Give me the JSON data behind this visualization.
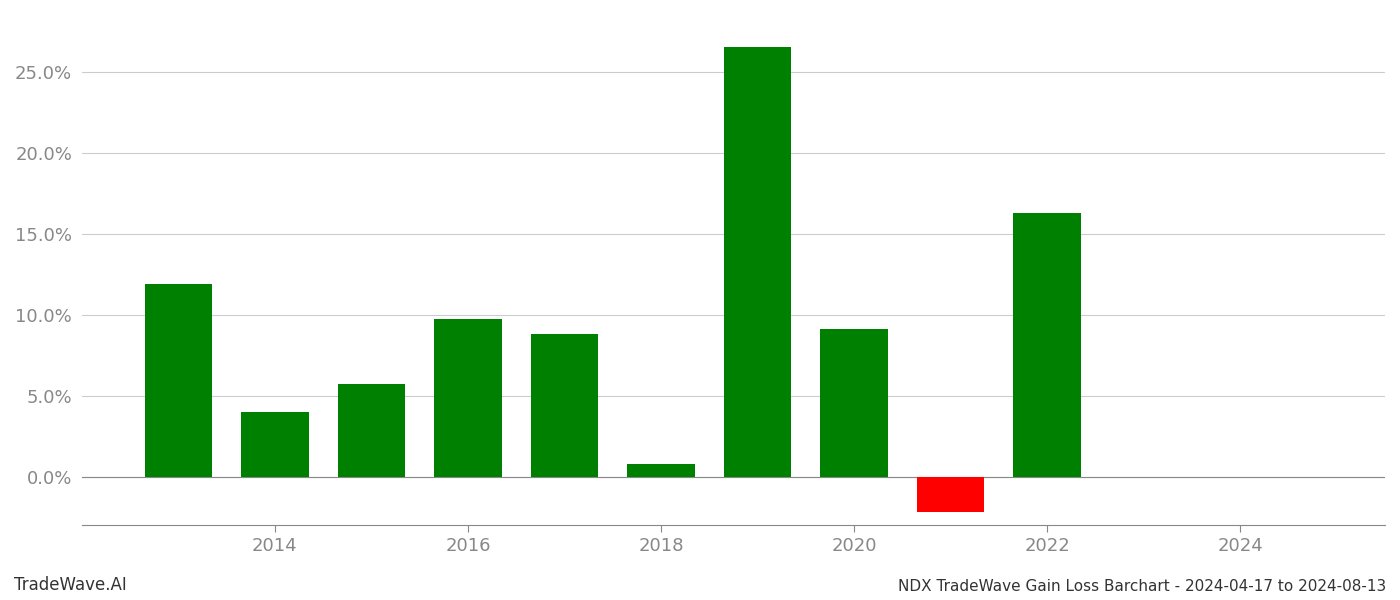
{
  "bar_years": [
    2013,
    2014,
    2015,
    2016,
    2017,
    2018,
    2019,
    2020,
    2021,
    2022,
    2023
  ],
  "bar_values": [
    0.119,
    0.04,
    0.057,
    0.097,
    0.088,
    0.008,
    0.265,
    0.091,
    -0.022,
    0.163,
    0.0
  ],
  "bar_colors": [
    "#008000",
    "#008000",
    "#008000",
    "#008000",
    "#008000",
    "#008000",
    "#008000",
    "#008000",
    "#ff0000",
    "#008000",
    "#008000"
  ],
  "xlim_min": 2012.0,
  "xlim_max": 2025.5,
  "ylim_min": -0.03,
  "ylim_max": 0.285,
  "yticks": [
    0.0,
    0.05,
    0.1,
    0.15,
    0.2,
    0.25
  ],
  "xticks": [
    2014,
    2016,
    2018,
    2020,
    2022,
    2024
  ],
  "bar_width": 0.7,
  "title": "NDX TradeWave Gain Loss Barchart - 2024-04-17 to 2024-08-13",
  "footnote_left": "TradeWave.AI",
  "grid_color": "#cccccc",
  "axis_color": "#888888",
  "tick_label_color": "#888888",
  "background_color": "#ffffff",
  "tick_fontsize": 13,
  "footnote_fontsize": 12,
  "title_fontsize": 11
}
